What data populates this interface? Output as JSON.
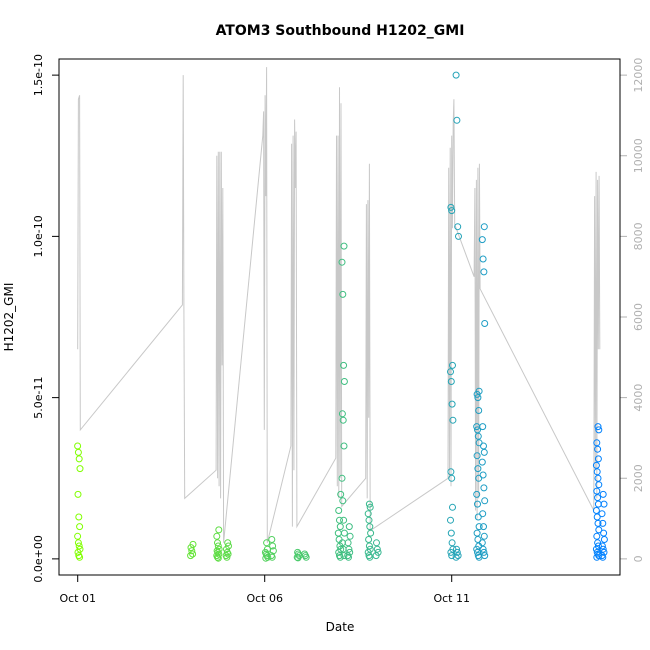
{
  "chart_data": {
    "type": "scatter",
    "title": "ATOM3 Southbound H1202_GMI",
    "xlabel": "Date",
    "ylabel": "H1202_GMI",
    "x_ticks": [
      "Oct 01",
      "Oct 06",
      "Oct 11"
    ],
    "x_tick_days": [
      1,
      6,
      11
    ],
    "xlim_days": [
      0.5,
      15.5
    ],
    "y_ticks": [
      "0.0e+00",
      "5.0e-11",
      "1.0e-10",
      "1.5e-10"
    ],
    "y_tick_values": [
      0,
      5e-11,
      1e-10,
      1.5e-10
    ],
    "ylim": [
      -5e-12,
      1.55e-10
    ],
    "y2_ticks": [
      "0",
      "2000",
      "4000",
      "6000",
      "8000",
      "10000",
      "12000"
    ],
    "y2_tick_values": [
      0,
      2000,
      4000,
      6000,
      8000,
      10000,
      12000
    ],
    "y2lim": [
      -400,
      12400
    ],
    "colors": {
      "points_start": "#80ff00",
      "points_end": "#0080ff",
      "altitude_line": "#c8c8c8"
    },
    "points": [
      {
        "day": 1.03,
        "values": [
          3.5e-11,
          3.3e-11,
          3.1e-11,
          2.8e-11,
          2e-11,
          1.3e-11,
          1e-11,
          7e-12,
          5e-12,
          4e-12,
          3e-12,
          2e-12,
          1e-12,
          5e-13
        ]
      },
      {
        "day": 4.05,
        "values": [
          4.5e-12,
          3.5e-12,
          2.5e-12,
          1.5e-12,
          1e-12
        ]
      },
      {
        "day": 4.75,
        "values": [
          9e-12,
          7e-12,
          5e-12,
          4e-12,
          3e-12,
          2.5e-12,
          2e-12,
          1.5e-12,
          1e-12,
          5e-13,
          2e-13
        ]
      },
      {
        "day": 5.0,
        "values": [
          5e-12,
          4e-12,
          3e-12,
          2e-12,
          1.5e-12,
          1e-12,
          5e-13
        ]
      },
      {
        "day": 6.05,
        "values": [
          5e-12,
          3e-12,
          2e-12,
          1.5e-12,
          1e-12,
          5e-13,
          2e-13
        ]
      },
      {
        "day": 6.2,
        "values": [
          6e-12,
          4e-12,
          2.5e-12,
          1e-12,
          5e-13
        ]
      },
      {
        "day": 6.9,
        "values": [
          2e-12,
          1.5e-12,
          1e-12,
          5e-13,
          3e-13
        ]
      },
      {
        "day": 7.1,
        "values": [
          1.5e-12,
          1e-12,
          5e-13
        ]
      },
      {
        "day": 8.0,
        "values": [
          2e-11,
          1.5e-11,
          1.2e-11,
          1e-11,
          8e-12,
          6e-12,
          4e-12,
          3e-12,
          2e-12,
          1e-12,
          5e-13
        ]
      },
      {
        "day": 8.1,
        "values": [
          9.7e-11,
          9.2e-11,
          8.2e-11,
          6e-11,
          5.5e-11,
          4.5e-11,
          4.3e-11,
          3.5e-11,
          2.5e-11,
          1.8e-11,
          1.2e-11,
          8e-12,
          5e-12,
          3e-12,
          1e-12
        ]
      },
      {
        "day": 8.25,
        "values": [
          1e-11,
          7e-12,
          5e-12,
          3e-12,
          2e-12,
          1e-12,
          5e-13
        ]
      },
      {
        "day": 8.8,
        "values": [
          1.7e-11,
          1.6e-11,
          1.4e-11,
          1.2e-11,
          1e-11,
          8e-12,
          6e-12,
          4e-12,
          3e-12,
          2e-12,
          1e-12,
          5e-13
        ]
      },
      {
        "day": 9.0,
        "values": [
          5e-12,
          3e-12,
          2e-12,
          1e-12
        ]
      },
      {
        "day": 11.0,
        "values": [
          1.09e-10,
          1.08e-10,
          6e-11,
          5.8e-11,
          5.5e-11,
          4.8e-11,
          4.3e-11,
          2.7e-11,
          2.5e-11,
          1.6e-11,
          1.2e-11,
          8e-12,
          5e-12,
          3e-12,
          2e-12,
          1e-12
        ]
      },
      {
        "day": 11.15,
        "values": [
          1.5e-10,
          1.36e-10,
          1.03e-10,
          1e-10,
          3e-12,
          2e-12,
          1e-12,
          5e-13
        ]
      },
      {
        "day": 11.7,
        "values": [
          5.2e-11,
          5.1e-11,
          5e-11,
          4.6e-11,
          4.1e-11,
          4e-11,
          3.8e-11,
          3.6e-11,
          3.2e-11,
          2.8e-11,
          2.5e-11,
          2e-11,
          1.7e-11,
          1.3e-11,
          1e-11,
          8e-12,
          6e-12,
          4e-12,
          3e-12,
          2e-12,
          1e-12,
          5e-13
        ]
      },
      {
        "day": 11.85,
        "values": [
          1.03e-10,
          9.9e-11,
          9.3e-11,
          8.9e-11,
          7.3e-11,
          4.1e-11,
          3.5e-11,
          3.3e-11,
          3e-11,
          2.6e-11,
          2.2e-11,
          1.8e-11,
          1.4e-11,
          1e-11,
          7e-12,
          5e-12,
          3e-12,
          2e-12,
          1e-12
        ]
      },
      {
        "day": 14.9,
        "values": [
          4.1e-11,
          4e-11,
          3.6e-11,
          3.4e-11,
          3.1e-11,
          2.9e-11,
          2.7e-11,
          2.5e-11,
          2.3e-11,
          2.1e-11,
          1.9e-11,
          1.7e-11,
          1.5e-11,
          1.3e-11,
          1.1e-11,
          9e-12,
          7e-12,
          5e-12,
          4e-12,
          3e-12,
          2e-12,
          1.5e-12,
          1e-12,
          5e-13
        ]
      },
      {
        "day": 15.05,
        "values": [
          2e-11,
          1.7e-11,
          1.4e-11,
          1.1e-11,
          8e-12,
          6e-12,
          4e-12,
          3e-12,
          2e-12,
          1e-12,
          5e-13
        ]
      }
    ],
    "altitude": [
      [
        1.0,
        5200
      ],
      [
        1.02,
        11400
      ],
      [
        1.05,
        11500
      ],
      [
        1.07,
        3200
      ],
      [
        3.8,
        6300
      ],
      [
        3.82,
        12000
      ],
      [
        3.84,
        6200
      ],
      [
        3.86,
        1500
      ],
      [
        4.7,
        2200
      ],
      [
        4.72,
        10000
      ],
      [
        4.74,
        2000
      ],
      [
        4.76,
        10100
      ],
      [
        4.78,
        1800
      ],
      [
        4.8,
        10100
      ],
      [
        4.82,
        1500
      ],
      [
        4.84,
        10100
      ],
      [
        4.86,
        4800
      ],
      [
        4.88,
        9200
      ],
      [
        4.9,
        400
      ],
      [
        5.95,
        10500
      ],
      [
        5.97,
        11100
      ],
      [
        5.99,
        3200
      ],
      [
        6.01,
        11500
      ],
      [
        6.03,
        9000
      ],
      [
        6.05,
        12200
      ],
      [
        6.07,
        400
      ],
      [
        6.7,
        2800
      ],
      [
        6.72,
        10300
      ],
      [
        6.74,
        800
      ],
      [
        6.76,
        10500
      ],
      [
        6.78,
        2200
      ],
      [
        6.8,
        10900
      ],
      [
        6.82,
        9200
      ],
      [
        6.84,
        10600
      ],
      [
        6.86,
        800
      ],
      [
        7.9,
        2500
      ],
      [
        7.92,
        10500
      ],
      [
        7.94,
        1800
      ],
      [
        7.96,
        10500
      ],
      [
        7.98,
        1500
      ],
      [
        8.0,
        11700
      ],
      [
        8.02,
        2000
      ],
      [
        8.04,
        11300
      ],
      [
        8.06,
        1300
      ],
      [
        8.7,
        2000
      ],
      [
        8.72,
        8800
      ],
      [
        8.74,
        1500
      ],
      [
        8.76,
        8900
      ],
      [
        8.78,
        3500
      ],
      [
        8.8,
        9800
      ],
      [
        8.82,
        700
      ],
      [
        10.9,
        2000
      ],
      [
        10.92,
        9700
      ],
      [
        10.94,
        2000
      ],
      [
        10.96,
        10200
      ],
      [
        10.98,
        1800
      ],
      [
        11.0,
        10500
      ],
      [
        11.02,
        8200
      ],
      [
        11.04,
        10800
      ],
      [
        11.06,
        11400
      ],
      [
        11.08,
        8300
      ],
      [
        11.6,
        7000
      ],
      [
        11.62,
        9200
      ],
      [
        11.64,
        1200
      ],
      [
        11.66,
        9400
      ],
      [
        11.68,
        1000
      ],
      [
        11.7,
        9700
      ],
      [
        11.72,
        1500
      ],
      [
        11.74,
        9800
      ],
      [
        11.76,
        6700
      ],
      [
        14.8,
        1200
      ],
      [
        14.82,
        9000
      ],
      [
        14.84,
        2200
      ],
      [
        14.86,
        9600
      ],
      [
        14.88,
        1500
      ],
      [
        14.9,
        9400
      ],
      [
        14.92,
        5200
      ],
      [
        14.94,
        9500
      ],
      [
        14.96,
        5200
      ]
    ]
  }
}
